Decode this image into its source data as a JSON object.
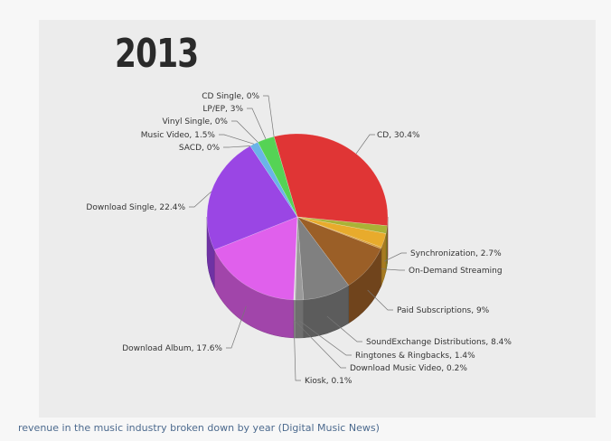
{
  "caption": "revenue in the music industry broken down by year (Digital Music News)",
  "chart_data": {
    "type": "pie",
    "title": "2013",
    "three_d": true,
    "slices": [
      {
        "label": "CD, 30.4%",
        "value": 30.4,
        "color": "#e03535"
      },
      {
        "label": "",
        "value": 1.5,
        "color": "#aab236"
      },
      {
        "label": "Synchronization, 2.7%",
        "value": 2.7,
        "color": "#e8ab2c"
      },
      {
        "label": "On-Demand Streaming",
        "value": 0.3,
        "color": "#d79a30"
      },
      {
        "label": "Paid Subscriptions, 9%",
        "value": 9.0,
        "color": "#9b5f27"
      },
      {
        "label": "SoundExchange Distributions, 8.4%",
        "value": 8.4,
        "color": "#808080"
      },
      {
        "label": "Ringtones & Ringbacks, 1.4%",
        "value": 1.4,
        "color": "#9a9a9a"
      },
      {
        "label": "Download Music Video, 0.2%",
        "value": 0.2,
        "color": "#c4c4c4"
      },
      {
        "label": "Kiosk, 0.1%",
        "value": 0.1,
        "color": "#d6d6d6"
      },
      {
        "label": "Download Album, 17.6%",
        "value": 17.6,
        "color": "#e060ec"
      },
      {
        "label": "Download Single, 22.4%",
        "value": 22.4,
        "color": "#9a46e4"
      },
      {
        "label": "SACD, 0%",
        "value": 0.0,
        "color": "#6e6ee0"
      },
      {
        "label": "Music Video, 1.5%",
        "value": 1.5,
        "color": "#6ab4e8"
      },
      {
        "label": "Vinyl Single, 0%",
        "value": 0.0,
        "color": "#7fd3c0"
      },
      {
        "label": "LP/EP, 3%",
        "value": 3.0,
        "color": "#55d355"
      },
      {
        "label": "CD Single, 0%",
        "value": 0.0,
        "color": "#88d888"
      }
    ],
    "legend": "none"
  }
}
